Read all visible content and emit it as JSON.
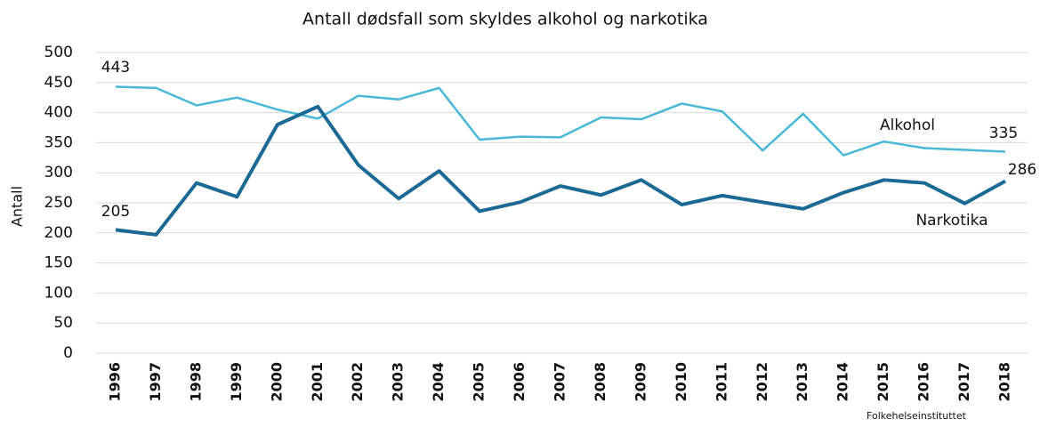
{
  "chart_data": {
    "type": "line",
    "title": "Antall dødsfall som skyldes alkohol og narkotika",
    "y_label": "Antall",
    "source": "Folkehelseinstituttet",
    "categories": [
      "1996",
      "1997",
      "1998",
      "1999",
      "2000",
      "2001",
      "2002",
      "2003",
      "2004",
      "2005",
      "2006",
      "2007",
      "2008",
      "2009",
      "2010",
      "2011",
      "2012",
      "2013",
      "2014",
      "2015",
      "2016",
      "2017",
      "2018"
    ],
    "series": [
      {
        "name": "Alkohol",
        "color": "#4ab8d8",
        "values": [
          443,
          441,
          412,
          425,
          405,
          390,
          428,
          422,
          441,
          355,
          360,
          359,
          392,
          389,
          415,
          402,
          337,
          398,
          329,
          352,
          341,
          338,
          335
        ]
      },
      {
        "name": "Narkotika",
        "color": "#1b6a95",
        "values": [
          205,
          197,
          283,
          260,
          380,
          410,
          313,
          257,
          303,
          236,
          251,
          278,
          263,
          288,
          247,
          262,
          251,
          240,
          267,
          288,
          283,
          249,
          286
        ]
      }
    ],
    "ylim": [
      0,
      500
    ],
    "yticks": [
      0,
      50,
      100,
      150,
      200,
      250,
      300,
      350,
      400,
      450,
      500
    ],
    "grid": true
  }
}
